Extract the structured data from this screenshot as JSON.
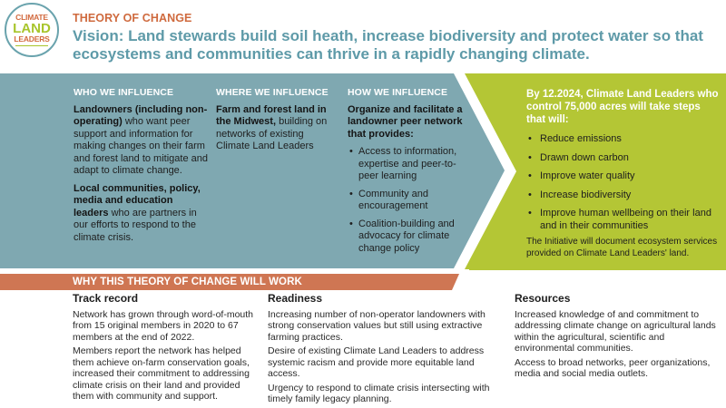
{
  "logo": {
    "line1": "CLIMATE",
    "line2": "LAND",
    "line3": "LEADERS"
  },
  "header": {
    "kicker": "THEORY OF CHANGE",
    "vision": "Vision: Land stewards build soil heath, increase biodiversity and protect water so that ecosystems and communities can thrive in a rapidly changing climate."
  },
  "who": {
    "heading": "WHO WE INFLUENCE",
    "p1_bold": "Landowners (including non-operating)",
    "p1_rest": " who want peer support and information for making changes on their farm and forest land to mitigate and adapt to climate change.",
    "p2_bold": "Local communities, policy, media and education leaders",
    "p2_rest": " who are partners in our efforts to respond to the climate crisis."
  },
  "where": {
    "heading": "WHERE WE INFLUENCE",
    "p1_bold": "Farm and forest land in the Midwest,",
    "p1_rest": " building on networks of existing Climate Land Leaders"
  },
  "how": {
    "heading": "HOW WE INFLUENCE",
    "intro": "Organize and facilitate a landowner peer network that provides:",
    "items": [
      "Access to information, expertise and peer-to-peer learning",
      "Community and encouragement",
      "Coalition-building and advocacy for climate change policy"
    ]
  },
  "outcome": {
    "heading": "By 12.2024, Climate Land Leaders who control 75,000 acres will take steps that will:",
    "items": [
      "Reduce emissions",
      "Drawn down carbon",
      "Improve water quality",
      "Increase biodiversity",
      "Improve human wellbeing on their land and in their communities"
    ],
    "note": "The Initiative will document ecosystem services provided on Climate Land Leaders' land."
  },
  "why": {
    "banner": "WHY THIS THEORY OF CHANGE WILL WORK",
    "columns": [
      {
        "title": "Track record",
        "paragraphs": [
          "Network has grown through word-of-mouth from 15 original members in 2020 to 67 members at the end of 2022.",
          "Members report the network has helped them achieve on-farm conservation goals, increased their commitment to addressing climate crisis on their land and provided them with community and support."
        ]
      },
      {
        "title": "Readiness",
        "paragraphs": [
          "Increasing number of non-operator landowners with strong conservation values but still using extractive farming practices.",
          "Desire of existing Climate Land Leaders to address systemic racism and provide more equitable land access.",
          "Urgency to respond to climate crisis intersecting with timely family legacy planning."
        ]
      },
      {
        "title": "Resources",
        "paragraphs": [
          "Increased knowledge of and commitment to addressing climate change on agricultural lands within the agricultural, scientific and environmental communities.",
          "Access to broad networks, peer organizations, media and social media outlets."
        ]
      }
    ]
  },
  "colors": {
    "teal": "#7fa8b1",
    "lime": "#b4c635",
    "orange": "#cf7653",
    "vision_text": "#5e9aa8",
    "kicker_text": "#cf6a3e"
  }
}
